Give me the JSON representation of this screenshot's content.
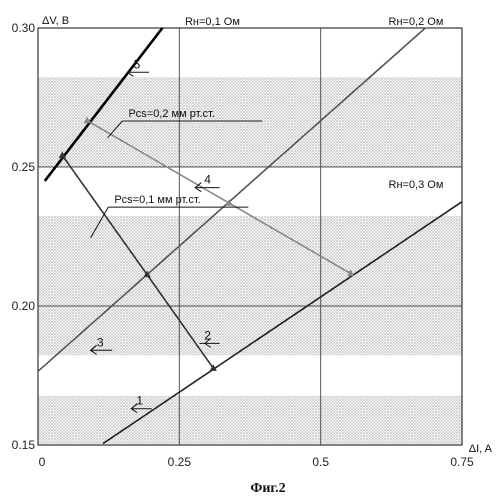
{
  "figure_caption": "Фиг.2",
  "chart_data": {
    "type": "line",
    "xlabel": "ΔI, A",
    "ylabel": "ΔV, B",
    "xlim": [
      0,
      0.75
    ],
    "ylim": [
      0.15,
      0.3
    ],
    "x_ticks": [
      0,
      0.25,
      0.5,
      0.75
    ],
    "x_tick_labels": [
      "0",
      "0.25",
      "0.5",
      "0.75"
    ],
    "y_ticks": [
      0.15,
      0.2,
      0.25,
      0.3
    ],
    "y_tick_labels": [
      "0.15",
      "0.20",
      "0.25",
      "0.30"
    ],
    "grid": true,
    "background": "dotted bands",
    "series": [
      {
        "name": "Rн=0,3 Ом",
        "number": "1",
        "color": "#222222",
        "x": [
          0.115,
          0.75
        ],
        "y": [
          0.1505,
          0.2375
        ]
      },
      {
        "name": "Rн=0,2 Ом",
        "number": "3",
        "color": "#555555",
        "x": [
          0.0,
          0.685
        ],
        "y": [
          0.1765,
          0.3
        ]
      },
      {
        "name": "Rн=0,1 Ом",
        "number": "5",
        "color": "#000000",
        "x": [
          0.012,
          0.22
        ],
        "y": [
          0.245,
          0.3
        ]
      },
      {
        "name": "Pcs=0,1 мм рт.ст.",
        "number": "2",
        "color": "#333333",
        "x": [
          0.043,
          0.193,
          0.31
        ],
        "y": [
          0.2542,
          0.2113,
          0.1776
        ],
        "markers": true
      },
      {
        "name": "Pcs=0,2 мм рт.ст.",
        "number": "4",
        "color": "#888888",
        "x": [
          0.087,
          0.338,
          0.553
        ],
        "y": [
          0.2667,
          0.237,
          0.2117
        ],
        "markers": true
      }
    ],
    "line_labels": [
      {
        "text": "Rн=0,1 Ом",
        "x": 0.26,
        "y": 0.301
      },
      {
        "text": "Rн=0,2 Ом",
        "x": 0.62,
        "y": 0.301
      },
      {
        "text": "Rн=0,3 Ом",
        "x": 0.62,
        "y": 0.2425
      }
    ],
    "pressure_labels": [
      {
        "text": "Pcs=0,2 мм рт.ст.",
        "x": 0.16,
        "y": 0.268
      },
      {
        "text": "Pcs=0,1 мм рт.ст.",
        "x": 0.135,
        "y": 0.237
      }
    ],
    "number_labels": [
      {
        "text": "1",
        "x": 0.18,
        "y": 0.1645
      },
      {
        "text": "2",
        "x": 0.3,
        "y": 0.188
      },
      {
        "text": "3",
        "x": 0.11,
        "y": 0.1855
      },
      {
        "text": "4",
        "x": 0.3,
        "y": 0.244
      },
      {
        "text": "5",
        "x": 0.175,
        "y": 0.2855
      }
    ]
  }
}
